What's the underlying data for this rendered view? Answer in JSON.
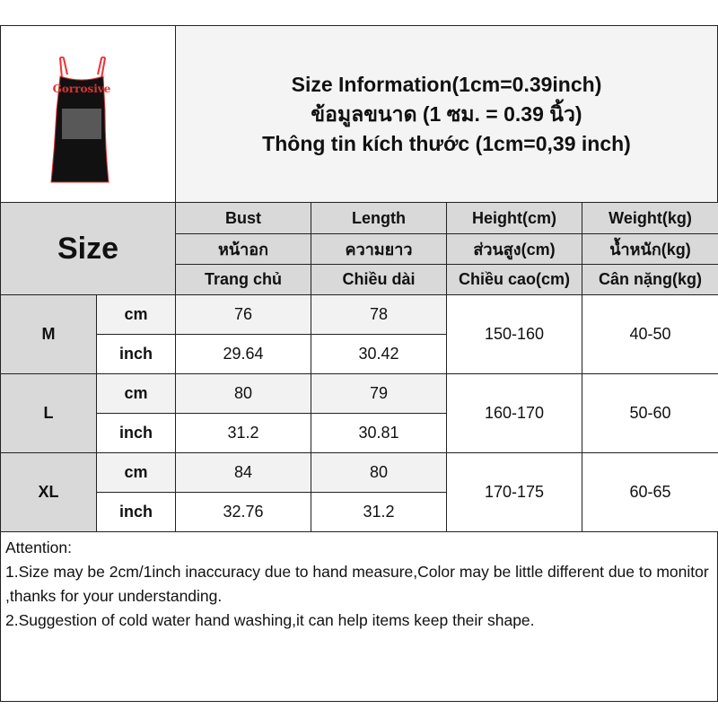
{
  "title": {
    "line1": "Size Information(1cm=0.39inch)",
    "line2": "ข้อมูลขนาด (1 ซม. = 0.39 นิ้ว)",
    "line3": "Thông tin kích thước (1cm=0,39 inch)"
  },
  "size_label": "Size",
  "columns": [
    {
      "en": "Bust",
      "th": "หน้าอก",
      "vi": "Trang chủ"
    },
    {
      "en": "Length",
      "th": "ความยาว",
      "vi": "Chiều dài"
    },
    {
      "en": "Height(cm)",
      "th": "ส่วนสูง(cm)",
      "vi": "Chiều cao(cm)"
    },
    {
      "en": "Weight(kg)",
      "th": "น้ำหนัก(kg)",
      "vi": "Cân nặng(kg)"
    }
  ],
  "units": {
    "cm": "cm",
    "inch": "inch"
  },
  "rows": [
    {
      "size": "M",
      "cm": [
        "76",
        "78"
      ],
      "inch": [
        "29.64",
        "30.42"
      ],
      "height": "150-160",
      "weight": "40-50"
    },
    {
      "size": "L",
      "cm": [
        "80",
        "79"
      ],
      "inch": [
        "31.2",
        "30.81"
      ],
      "height": "160-170",
      "weight": "50-60"
    },
    {
      "size": "XL",
      "cm": [
        "84",
        "80"
      ],
      "inch": [
        "32.76",
        "31.2"
      ],
      "height": "170-175",
      "weight": "60-65"
    }
  ],
  "notes": [
    "Attention:",
    "1.Size may be 2cm/1inch inaccuracy due to hand measure,Color may be little different due to monitor ,thanks for your understanding.",
    "2.Suggestion of cold water hand washing,it can help items keep their shape."
  ],
  "dress_print_text": "Gorrosive"
}
